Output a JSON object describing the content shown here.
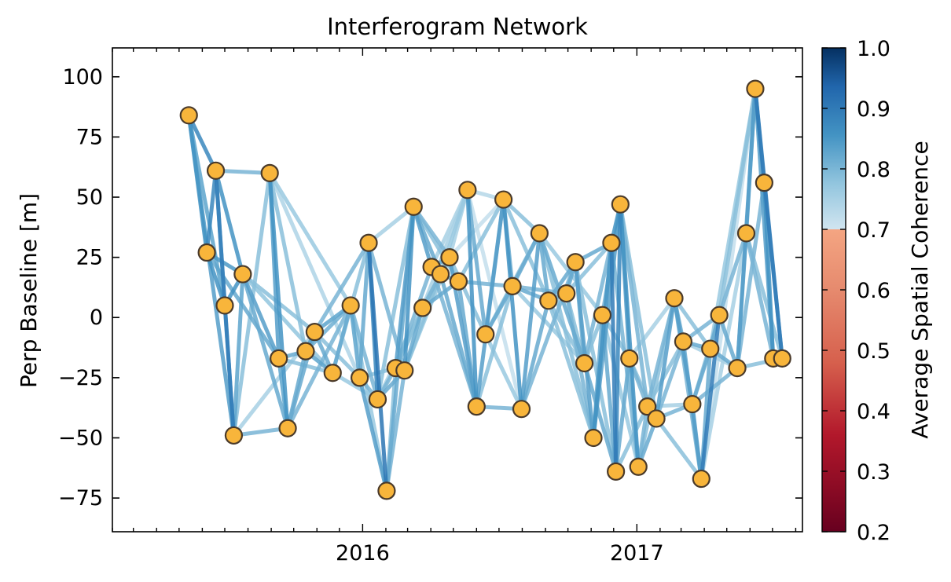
{
  "chart_data": {
    "type": "scatter",
    "title": "Interferogram Network",
    "xlabel": "",
    "ylabel": "Perp Baseline [m]",
    "x_ticks": [
      "2016",
      "2017"
    ],
    "y_ticks": [
      100,
      75,
      50,
      25,
      0,
      -25,
      -50,
      -75
    ],
    "ylim": [
      -89,
      112
    ],
    "xlim": [
      "2015-02-01",
      "2017-08-10"
    ],
    "grid": false,
    "colors": {
      "node_fill": "#F8B53B",
      "node_edge": "#4A3A2A"
    },
    "colorbar": {
      "label": "Average Spatial Coherence",
      "range": [
        0.2,
        1.0
      ],
      "ticks": [
        "1.0",
        "0.9",
        "0.8",
        "0.7",
        "0.6",
        "0.5",
        "0.4",
        "0.3",
        "0.2"
      ],
      "colormap": "RdBu",
      "split_at": 0.7
    },
    "nodes": [
      {
        "id": 0,
        "date": "2015-05-14",
        "bperp": 84
      },
      {
        "id": 1,
        "date": "2015-06-07",
        "bperp": 27
      },
      {
        "id": 2,
        "date": "2015-06-19",
        "bperp": 61
      },
      {
        "id": 3,
        "date": "2015-07-01",
        "bperp": 5
      },
      {
        "id": 4,
        "date": "2015-07-13",
        "bperp": -49
      },
      {
        "id": 5,
        "date": "2015-07-25",
        "bperp": 18
      },
      {
        "id": 6,
        "date": "2015-08-30",
        "bperp": 60
      },
      {
        "id": 7,
        "date": "2015-09-11",
        "bperp": -17
      },
      {
        "id": 8,
        "date": "2015-09-23",
        "bperp": -46
      },
      {
        "id": 9,
        "date": "2015-10-17",
        "bperp": -14
      },
      {
        "id": 10,
        "date": "2015-10-29",
        "bperp": -6
      },
      {
        "id": 11,
        "date": "2015-11-22",
        "bperp": -23
      },
      {
        "id": 12,
        "date": "2015-12-16",
        "bperp": 5
      },
      {
        "id": 13,
        "date": "2015-12-28",
        "bperp": -25
      },
      {
        "id": 14,
        "date": "2016-01-09",
        "bperp": 31
      },
      {
        "id": 15,
        "date": "2016-01-21",
        "bperp": -34
      },
      {
        "id": 16,
        "date": "2016-02-02",
        "bperp": -72
      },
      {
        "id": 17,
        "date": "2016-02-14",
        "bperp": -21
      },
      {
        "id": 18,
        "date": "2016-02-26",
        "bperp": -22
      },
      {
        "id": 19,
        "date": "2016-03-09",
        "bperp": 46
      },
      {
        "id": 20,
        "date": "2016-03-21",
        "bperp": 4
      },
      {
        "id": 21,
        "date": "2016-04-02",
        "bperp": 21
      },
      {
        "id": 22,
        "date": "2016-04-14",
        "bperp": 18
      },
      {
        "id": 23,
        "date": "2016-04-26",
        "bperp": 25
      },
      {
        "id": 24,
        "date": "2016-05-08",
        "bperp": 15
      },
      {
        "id": 25,
        "date": "2016-05-20",
        "bperp": 53
      },
      {
        "id": 26,
        "date": "2016-06-01",
        "bperp": -37
      },
      {
        "id": 27,
        "date": "2016-06-13",
        "bperp": -7
      },
      {
        "id": 28,
        "date": "2016-07-07",
        "bperp": 49
      },
      {
        "id": 29,
        "date": "2016-07-19",
        "bperp": 13
      },
      {
        "id": 30,
        "date": "2016-07-31",
        "bperp": -38
      },
      {
        "id": 31,
        "date": "2016-08-24",
        "bperp": 35
      },
      {
        "id": 32,
        "date": "2016-09-05",
        "bperp": 7
      },
      {
        "id": 33,
        "date": "2016-09-29",
        "bperp": 10
      },
      {
        "id": 34,
        "date": "2016-10-11",
        "bperp": 23
      },
      {
        "id": 35,
        "date": "2016-10-23",
        "bperp": -19
      },
      {
        "id": 36,
        "date": "2016-11-04",
        "bperp": -50
      },
      {
        "id": 37,
        "date": "2016-11-16",
        "bperp": 1
      },
      {
        "id": 38,
        "date": "2016-11-28",
        "bperp": 31
      },
      {
        "id": 39,
        "date": "2016-12-04",
        "bperp": -64
      },
      {
        "id": 40,
        "date": "2016-12-10",
        "bperp": 47
      },
      {
        "id": 41,
        "date": "2016-12-22",
        "bperp": -17
      },
      {
        "id": 42,
        "date": "2017-01-03",
        "bperp": -62
      },
      {
        "id": 43,
        "date": "2017-01-15",
        "bperp": -37
      },
      {
        "id": 44,
        "date": "2017-01-27",
        "bperp": -42
      },
      {
        "id": 45,
        "date": "2017-02-20",
        "bperp": 8
      },
      {
        "id": 46,
        "date": "2017-03-04",
        "bperp": -10
      },
      {
        "id": 47,
        "date": "2017-03-16",
        "bperp": -36
      },
      {
        "id": 48,
        "date": "2017-03-28",
        "bperp": -67
      },
      {
        "id": 49,
        "date": "2017-04-09",
        "bperp": -13
      },
      {
        "id": 50,
        "date": "2017-04-21",
        "bperp": 1
      },
      {
        "id": 51,
        "date": "2017-05-15",
        "bperp": -21
      },
      {
        "id": 52,
        "date": "2017-05-27",
        "bperp": 35
      },
      {
        "id": 53,
        "date": "2017-06-08",
        "bperp": 95
      },
      {
        "id": 54,
        "date": "2017-06-20",
        "bperp": 56
      },
      {
        "id": 55,
        "date": "2017-07-02",
        "bperp": -17
      },
      {
        "id": 56,
        "date": "2017-07-14",
        "bperp": -17
      }
    ],
    "edges": [
      [
        0,
        1,
        0.88
      ],
      [
        0,
        2,
        0.9
      ],
      [
        0,
        3,
        0.85
      ],
      [
        0,
        4,
        0.86
      ],
      [
        1,
        2,
        0.9
      ],
      [
        1,
        3,
        0.88
      ],
      [
        1,
        5,
        0.87
      ],
      [
        1,
        7,
        0.84
      ],
      [
        2,
        4,
        0.92
      ],
      [
        2,
        5,
        0.88
      ],
      [
        2,
        6,
        0.82
      ],
      [
        2,
        3,
        0.85
      ],
      [
        3,
        5,
        0.88
      ],
      [
        3,
        4,
        0.88
      ],
      [
        4,
        5,
        0.85
      ],
      [
        4,
        6,
        0.8
      ],
      [
        4,
        8,
        0.82
      ],
      [
        4,
        10,
        0.76
      ],
      [
        5,
        7,
        0.86
      ],
      [
        5,
        8,
        0.84
      ],
      [
        5,
        10,
        0.8
      ],
      [
        5,
        11,
        0.79
      ],
      [
        6,
        7,
        0.86
      ],
      [
        6,
        8,
        0.88
      ],
      [
        6,
        9,
        0.8
      ],
      [
        6,
        12,
        0.78
      ],
      [
        6,
        13,
        0.75
      ],
      [
        7,
        9,
        0.84
      ],
      [
        7,
        11,
        0.8
      ],
      [
        7,
        8,
        0.85
      ],
      [
        8,
        10,
        0.84
      ],
      [
        8,
        12,
        0.82
      ],
      [
        8,
        9,
        0.84
      ],
      [
        9,
        12,
        0.83
      ],
      [
        9,
        11,
        0.85
      ],
      [
        9,
        10,
        0.86
      ],
      [
        10,
        12,
        0.85
      ],
      [
        10,
        13,
        0.8
      ],
      [
        10,
        14,
        0.82
      ],
      [
        10,
        11,
        0.84
      ],
      [
        11,
        15,
        0.78
      ],
      [
        11,
        14,
        0.8
      ],
      [
        11,
        12,
        0.84
      ],
      [
        12,
        15,
        0.82
      ],
      [
        12,
        16,
        0.78
      ],
      [
        12,
        13,
        0.85
      ],
      [
        13,
        14,
        0.84
      ],
      [
        13,
        16,
        0.86
      ],
      [
        13,
        17,
        0.8
      ],
      [
        13,
        15,
        0.82
      ],
      [
        14,
        16,
        0.93
      ],
      [
        14,
        15,
        0.9
      ],
      [
        14,
        18,
        0.82
      ],
      [
        14,
        19,
        0.76
      ],
      [
        15,
        17,
        0.82
      ],
      [
        15,
        19,
        0.8
      ],
      [
        15,
        18,
        0.84
      ],
      [
        15,
        20,
        0.76
      ],
      [
        16,
        19,
        0.84
      ],
      [
        16,
        18,
        0.82
      ],
      [
        16,
        17,
        0.8
      ],
      [
        17,
        19,
        0.86
      ],
      [
        17,
        21,
        0.82
      ],
      [
        17,
        20,
        0.8
      ],
      [
        17,
        22,
        0.78
      ],
      [
        18,
        19,
        0.88
      ],
      [
        18,
        20,
        0.84
      ],
      [
        18,
        22,
        0.8
      ],
      [
        18,
        23,
        0.78
      ],
      [
        19,
        21,
        0.86
      ],
      [
        19,
        22,
        0.84
      ],
      [
        19,
        23,
        0.82
      ],
      [
        19,
        24,
        0.8
      ],
      [
        20,
        25,
        0.76
      ],
      [
        20,
        23,
        0.82
      ],
      [
        20,
        24,
        0.84
      ],
      [
        21,
        23,
        0.84
      ],
      [
        21,
        26,
        0.82
      ],
      [
        21,
        25,
        0.76
      ],
      [
        21,
        22,
        0.85
      ],
      [
        22,
        25,
        0.78
      ],
      [
        22,
        26,
        0.84
      ],
      [
        22,
        24,
        0.84
      ],
      [
        23,
        26,
        0.86
      ],
      [
        23,
        27,
        0.8
      ],
      [
        23,
        25,
        0.76
      ],
      [
        23,
        28,
        0.72
      ],
      [
        24,
        26,
        0.84
      ],
      [
        24,
        28,
        0.8
      ],
      [
        24,
        29,
        0.82
      ],
      [
        25,
        26,
        0.88
      ],
      [
        25,
        27,
        0.84
      ],
      [
        25,
        28,
        0.74
      ],
      [
        25,
        30,
        0.72
      ],
      [
        26,
        28,
        0.86
      ],
      [
        26,
        30,
        0.82
      ],
      [
        26,
        29,
        0.8
      ],
      [
        27,
        28,
        0.84
      ],
      [
        27,
        31,
        0.8
      ],
      [
        27,
        30,
        0.78
      ],
      [
        27,
        29,
        0.84
      ],
      [
        28,
        30,
        0.88
      ],
      [
        28,
        31,
        0.8
      ],
      [
        28,
        29,
        0.84
      ],
      [
        28,
        32,
        0.8
      ],
      [
        29,
        31,
        0.84
      ],
      [
        29,
        33,
        0.82
      ],
      [
        29,
        32,
        0.84
      ],
      [
        29,
        35,
        0.78
      ],
      [
        30,
        31,
        0.86
      ],
      [
        30,
        34,
        0.82
      ],
      [
        30,
        32,
        0.84
      ],
      [
        31,
        32,
        0.84
      ],
      [
        31,
        35,
        0.84
      ],
      [
        31,
        36,
        0.8
      ],
      [
        31,
        37,
        0.78
      ],
      [
        32,
        34,
        0.84
      ],
      [
        32,
        36,
        0.8
      ],
      [
        32,
        33,
        0.82
      ],
      [
        32,
        35,
        0.8
      ],
      [
        33,
        34,
        0.84
      ],
      [
        33,
        36,
        0.82
      ],
      [
        33,
        38,
        0.8
      ],
      [
        33,
        35,
        0.8
      ],
      [
        34,
        36,
        0.86
      ],
      [
        34,
        38,
        0.84
      ],
      [
        34,
        35,
        0.82
      ],
      [
        34,
        39,
        0.8
      ],
      [
        35,
        39,
        0.84
      ],
      [
        35,
        37,
        0.8
      ],
      [
        35,
        38,
        0.82
      ],
      [
        36,
        38,
        0.88
      ],
      [
        36,
        40,
        0.86
      ],
      [
        36,
        37,
        0.84
      ],
      [
        37,
        39,
        0.84
      ],
      [
        37,
        41,
        0.8
      ],
      [
        37,
        40,
        0.82
      ],
      [
        37,
        42,
        0.78
      ],
      [
        38,
        39,
        0.92
      ],
      [
        38,
        40,
        0.88
      ],
      [
        38,
        42,
        0.82
      ],
      [
        39,
        40,
        0.9
      ],
      [
        39,
        41,
        0.84
      ],
      [
        39,
        43,
        0.8
      ],
      [
        40,
        42,
        0.88
      ],
      [
        40,
        41,
        0.86
      ],
      [
        40,
        44,
        0.8
      ],
      [
        40,
        43,
        0.82
      ],
      [
        41,
        43,
        0.82
      ],
      [
        41,
        44,
        0.8
      ],
      [
        41,
        45,
        0.76
      ],
      [
        41,
        42,
        0.8
      ],
      [
        42,
        45,
        0.8
      ],
      [
        42,
        43,
        0.82
      ],
      [
        42,
        44,
        0.84
      ],
      [
        43,
        45,
        0.82
      ],
      [
        43,
        46,
        0.8
      ],
      [
        43,
        47,
        0.76
      ],
      [
        43,
        44,
        0.84
      ],
      [
        44,
        45,
        0.86
      ],
      [
        44,
        47,
        0.82
      ],
      [
        44,
        48,
        0.8
      ],
      [
        44,
        46,
        0.82
      ],
      [
        45,
        47,
        0.86
      ],
      [
        45,
        48,
        0.82
      ],
      [
        45,
        46,
        0.84
      ],
      [
        45,
        49,
        0.8
      ],
      [
        46,
        48,
        0.84
      ],
      [
        46,
        50,
        0.82
      ],
      [
        46,
        49,
        0.84
      ],
      [
        46,
        51,
        0.76
      ],
      [
        47,
        50,
        0.8
      ],
      [
        47,
        51,
        0.82
      ],
      [
        47,
        49,
        0.84
      ],
      [
        47,
        48,
        0.86
      ],
      [
        48,
        50,
        0.92
      ],
      [
        48,
        53,
        0.72
      ],
      [
        48,
        52,
        0.76
      ],
      [
        48,
        49,
        0.84
      ],
      [
        49,
        51,
        0.84
      ],
      [
        49,
        50,
        0.84
      ],
      [
        49,
        53,
        0.78
      ],
      [
        50,
        52,
        0.82
      ],
      [
        50,
        51,
        0.84
      ],
      [
        50,
        53,
        0.8
      ],
      [
        51,
        53,
        0.86
      ],
      [
        51,
        54,
        0.82
      ],
      [
        51,
        52,
        0.84
      ],
      [
        51,
        56,
        0.8
      ],
      [
        52,
        53,
        0.86
      ],
      [
        52,
        55,
        0.82
      ],
      [
        52,
        56,
        0.8
      ],
      [
        53,
        54,
        0.9
      ],
      [
        53,
        56,
        0.92
      ],
      [
        53,
        55,
        0.86
      ],
      [
        54,
        55,
        0.88
      ],
      [
        54,
        56,
        0.9
      ]
    ]
  }
}
